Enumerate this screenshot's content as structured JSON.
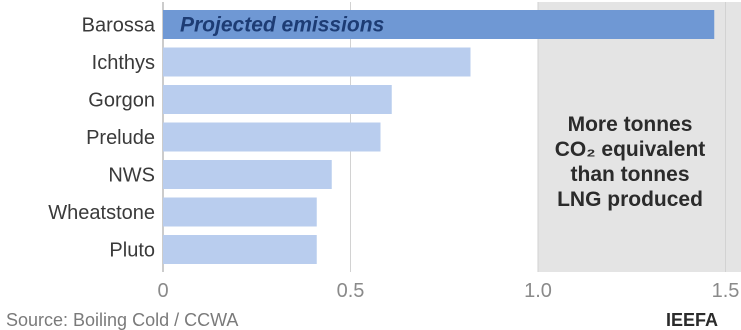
{
  "chart_data": {
    "type": "bar",
    "orientation": "horizontal",
    "categories": [
      "Barossa",
      "Ichthys",
      "Gorgon",
      "Prelude",
      "NWS",
      "Wheatstone",
      "Pluto"
    ],
    "values": [
      1.47,
      0.82,
      0.61,
      0.58,
      0.45,
      0.41,
      0.41
    ],
    "xlim": [
      0,
      1.5
    ],
    "xticks": [
      "0",
      "0.5",
      "1.0",
      "1.5"
    ],
    "highlight_label": "Projected emissions",
    "shaded_region": {
      "from": 1.0,
      "to": 1.5,
      "label_lines": [
        "More tonnes",
        "CO₂ equivalent",
        "than tonnes",
        "LNG produced"
      ]
    },
    "colors": {
      "highlight_bar": "#6f98d4",
      "bar": "#b9cdee",
      "shaded_region": "#e4e4e4"
    },
    "source": "Source: Boiling Cold / CCWA",
    "brand": "IEEFA"
  }
}
